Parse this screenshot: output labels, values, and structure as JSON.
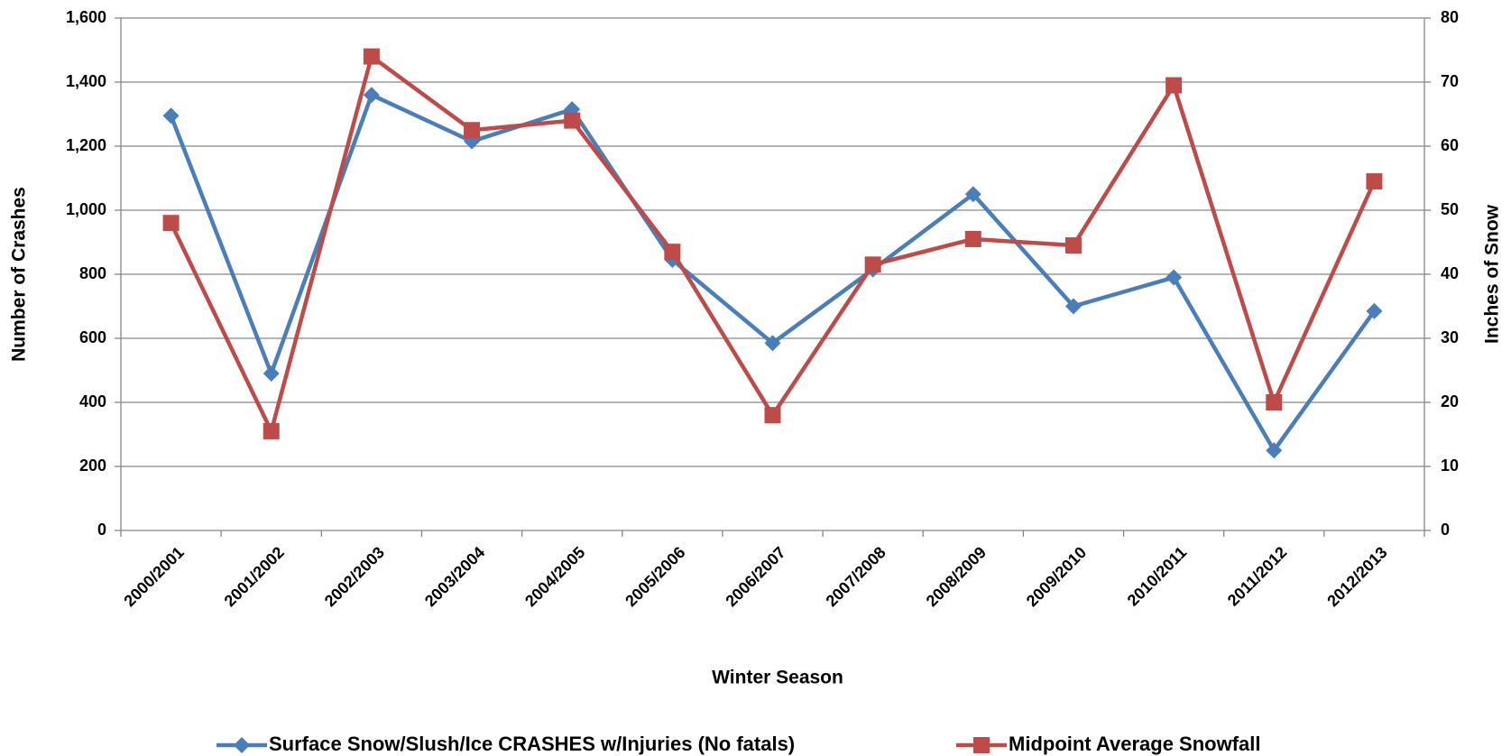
{
  "chart_data": {
    "type": "line",
    "x_label": "Winter Season",
    "y_label": "Number of Crashes",
    "y2_label": "Inches of Snow",
    "categories": [
      "2000/2001",
      "2001/2002",
      "2002/2003",
      "2003/2004",
      "2004/2005",
      "2005/2006",
      "2006/2007",
      "2007/2008",
      "2008/2009",
      "2009/2010",
      "2010/2011",
      "2011/2012",
      "2012/2013"
    ],
    "series": [
      {
        "name": "Surface Snow/Slush/Ice CRASHES w/Injuries (No fatals)",
        "color": "#4a7ebb",
        "marker": "diamond",
        "values": [
          1295,
          490,
          1360,
          1215,
          1315,
          845,
          585,
          815,
          1050,
          700,
          790,
          250,
          685
        ]
      },
      {
        "name": "Midpoint Average Snowfall",
        "color": "#be4b48",
        "marker": "square",
        "axis": "y2",
        "values": [
          48,
          15.5,
          74,
          62.5,
          64,
          43.5,
          18,
          41.5,
          45.5,
          44.5,
          69.5,
          20,
          54.5
        ]
      }
    ],
    "ylim": [
      0,
      1600
    ],
    "yticks": [
      0,
      200,
      400,
      600,
      800,
      {
        "value": 1000,
        "label": "1,000"
      },
      {
        "value": 1200,
        "label": "1,200"
      },
      {
        "value": 1400,
        "label": "1,400"
      },
      {
        "value": 1600,
        "label": "1,600"
      }
    ],
    "y2lim": [
      0,
      80
    ],
    "y2ticks": [
      0,
      10,
      20,
      30,
      40,
      50,
      60,
      70,
      80
    ],
    "grid": true,
    "legend": "bottom"
  }
}
